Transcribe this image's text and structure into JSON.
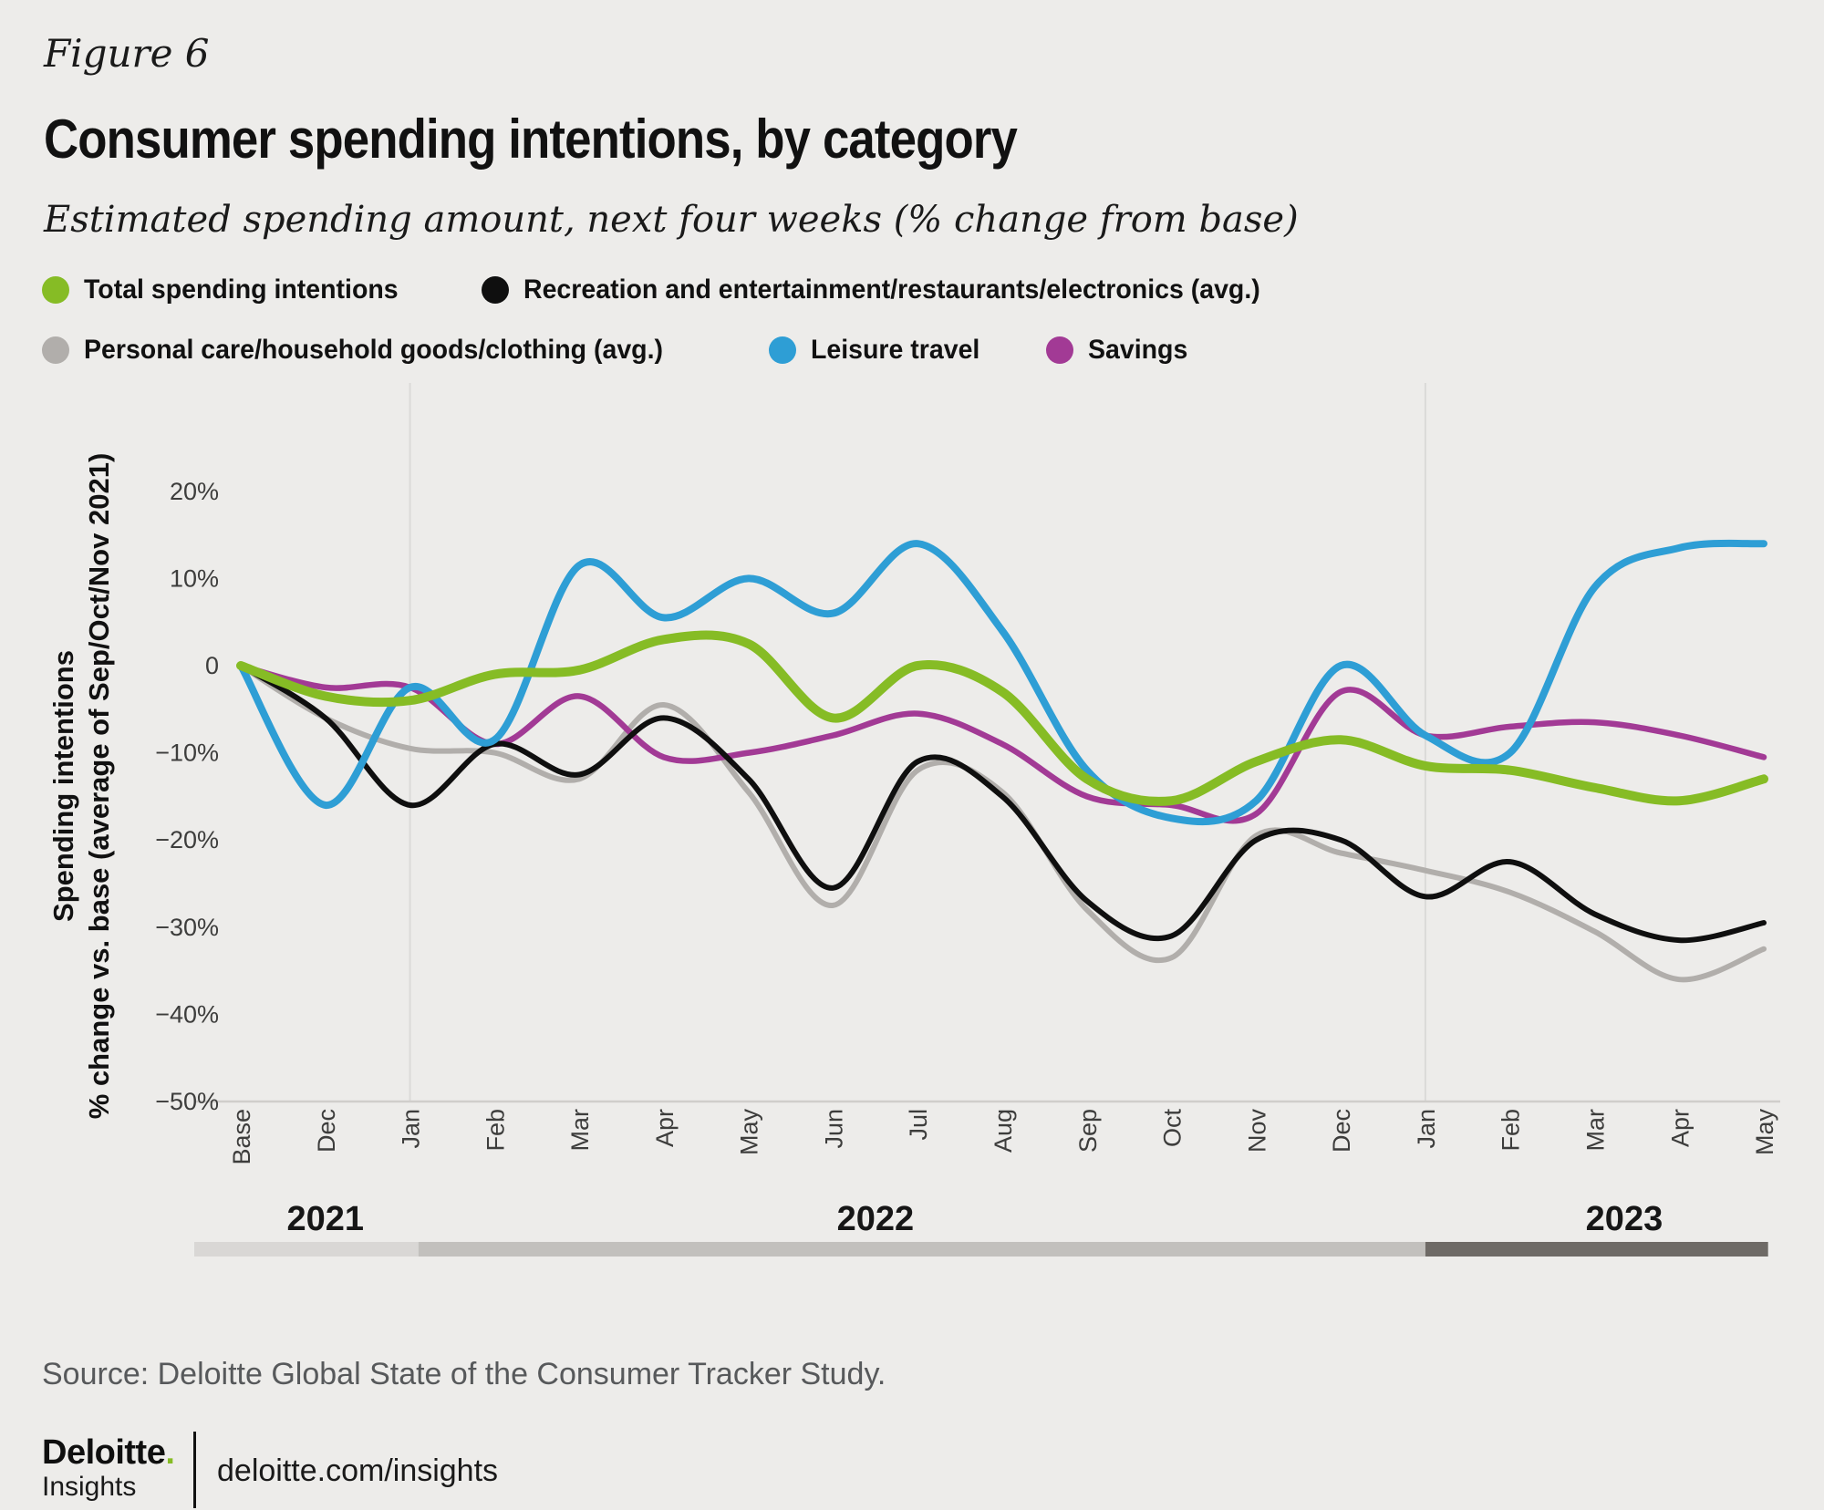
{
  "page": {
    "background": "#edecea"
  },
  "header": {
    "figure_label": "Figure 6",
    "title": "Consumer spending intentions, by category",
    "subtitle": "Estimated spending amount, next four weeks (% change from base)"
  },
  "legend": {
    "items": [
      {
        "label": "Total spending intentions",
        "color": "#86BC25"
      },
      {
        "label": "Recreation and entertainment/restaurants/electronics (avg.)",
        "color": "#0f0f0f"
      },
      {
        "label": "Personal care/household goods/clothing (avg.)",
        "color": "#b1aeab"
      },
      {
        "label": "Leisure travel",
        "color": "#2E9ED5"
      },
      {
        "label": "Savings",
        "color": "#A23A95"
      }
    ]
  },
  "chart_data": {
    "type": "line",
    "title": "Consumer spending intentions, by category",
    "xlabel": "",
    "ylabel_line1": "Spending intentions",
    "ylabel_line2": "% change vs. base (average of Sep/Oct/Nov 2021)",
    "ylim": [
      -50,
      20
    ],
    "grid": "vertical-at-january-only",
    "legend_position": "top",
    "categories": [
      "Base",
      "Dec",
      "Jan",
      "Feb",
      "Mar",
      "Apr",
      "May",
      "Jun",
      "Jul",
      "Aug",
      "Sep",
      "Oct",
      "Nov",
      "Dec",
      "Jan",
      "Feb",
      "Mar",
      "Apr",
      "May"
    ],
    "year_labels": [
      {
        "text": "2021",
        "x_index": 1.0
      },
      {
        "text": "2022",
        "x_index": 7.5
      },
      {
        "text": "2023",
        "x_index": 16.35
      }
    ],
    "grid_month_indices": [
      2,
      14
    ],
    "y_ticks": [
      {
        "label": "20%",
        "value": 20
      },
      {
        "label": "10%",
        "value": 10
      },
      {
        "label": "0",
        "value": 0
      },
      {
        "label": "−10%",
        "value": -10
      },
      {
        "label": "−20%",
        "value": -20
      },
      {
        "label": "−30%",
        "value": -30
      },
      {
        "label": "−40%",
        "value": -40
      },
      {
        "label": "−50%",
        "value": -50
      }
    ],
    "series": [
      {
        "name": "Total spending intentions",
        "color": "#86BC25",
        "width": 10,
        "z": 5,
        "values": [
          0,
          -3.5,
          -4,
          -1,
          -0.5,
          3,
          2.5,
          -6,
          0,
          -3,
          -13,
          -15.5,
          -11,
          -8.5,
          -11.5,
          -12,
          -14,
          -15.5,
          -13
        ]
      },
      {
        "name": "Recreation and entertainment/restaurants/electronics (avg.)",
        "color": "#0f0f0f",
        "width": 6,
        "z": 3,
        "values": [
          0,
          -6,
          -16,
          -9,
          -12.5,
          -6,
          -13,
          -25.5,
          -11,
          -15,
          -27,
          -31,
          -20,
          -20,
          -26.5,
          -22.5,
          -28.5,
          -31.5,
          -29.5
        ]
      },
      {
        "name": "Personal care/household goods/clothing (avg.)",
        "color": "#b1aeab",
        "width": 6,
        "z": 1,
        "values": [
          0,
          -6,
          -9.5,
          -10,
          -13,
          -4.5,
          -14.5,
          -27.5,
          -12,
          -14.5,
          -28,
          -33.5,
          -19.5,
          -21.5,
          -23.5,
          -26,
          -30.5,
          -36,
          -32.5
        ]
      },
      {
        "name": "Leisure travel",
        "color": "#2E9ED5",
        "width": 8,
        "z": 4,
        "values": [
          0,
          -16,
          -2.5,
          -8.5,
          11.5,
          5.5,
          10,
          6,
          14,
          4,
          -12,
          -17.5,
          -15.5,
          0,
          -8,
          -10,
          9,
          13.5,
          14
        ]
      },
      {
        "name": "Savings",
        "color": "#A23A95",
        "width": 6.5,
        "z": 2,
        "values": [
          0,
          -2.5,
          -2.5,
          -9,
          -3.5,
          -10.5,
          -10,
          -8,
          -5.5,
          -9,
          -15,
          -16,
          -17,
          -3,
          -8,
          -7,
          -6.5,
          -8,
          -10.5
        ]
      }
    ],
    "timeline_bar": {
      "segments": [
        {
          "color": "#d9d7d5",
          "from_index": -0.55,
          "to_index": 2.1
        },
        {
          "color": "#c2c0bd",
          "from_index": 2.1,
          "to_index": 14.0
        },
        {
          "color": "#6e6a66",
          "from_index": 14.0,
          "to_index": 18.05
        }
      ]
    }
  },
  "source": {
    "text": "Source: Deloitte Global State of the Consumer Tracker Study."
  },
  "footer": {
    "logo_primary": "Deloitte",
    "logo_dot": ".",
    "logo_secondary": "Insights",
    "site": "deloitte.com/insights"
  }
}
